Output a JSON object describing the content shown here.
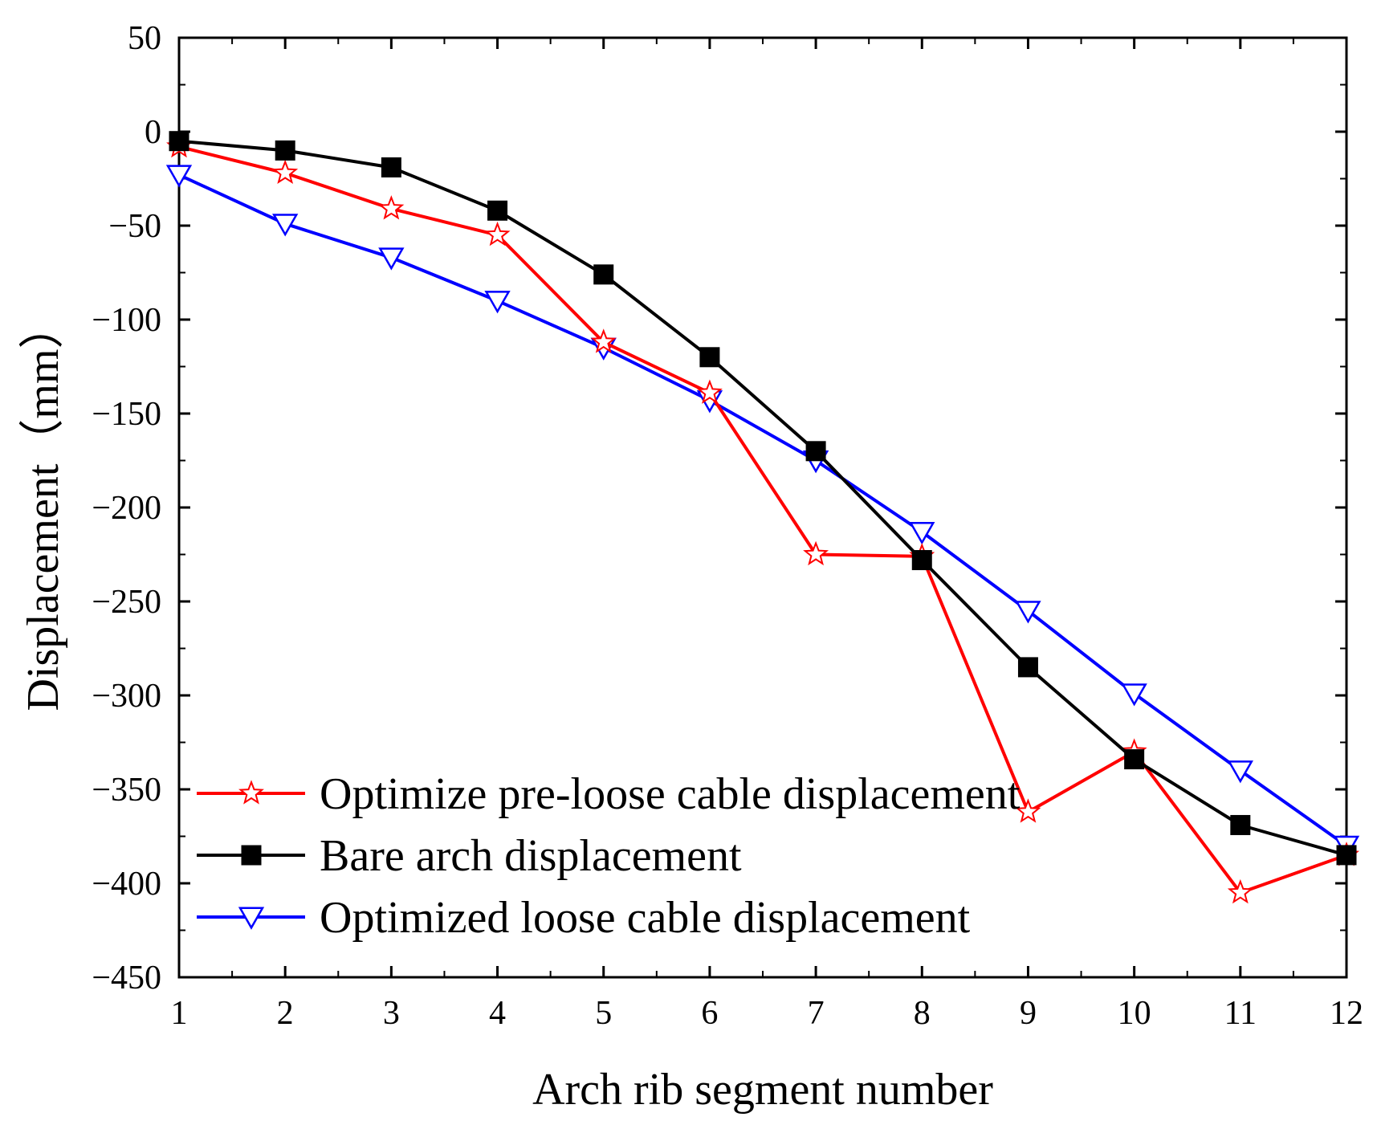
{
  "chart_data": {
    "type": "line",
    "title": "",
    "xlabel": "Arch rib segment number",
    "ylabel": "Displacement（mm）",
    "x": [
      1,
      2,
      3,
      4,
      5,
      6,
      7,
      8,
      9,
      10,
      11,
      12
    ],
    "xlim": [
      1,
      12
    ],
    "ylim": [
      -450,
      50
    ],
    "xticks": [
      "1",
      "2",
      "3",
      "4",
      "5",
      "6",
      "7",
      "8",
      "9",
      "10",
      "11",
      "12"
    ],
    "yticks": [
      50,
      0,
      -50,
      -100,
      -150,
      -200,
      -250,
      -300,
      -350,
      -400,
      -450
    ],
    "ytick_labels": [
      "50",
      "0",
      "−50",
      "−100",
      "−150",
      "−200",
      "−250",
      "−300",
      "−350",
      "−400",
      "−450"
    ],
    "grid": false,
    "legend_position": "bottom-left",
    "series": [
      {
        "name": "Optimize pre-loose cable displacement",
        "color": "#ff0000",
        "marker": "star-open",
        "values": [
          -8,
          -22,
          -41,
          -55,
          -112,
          -139,
          -225,
          -226,
          -362,
          -330,
          -405,
          -385
        ]
      },
      {
        "name": "Bare arch displacement",
        "color": "#000000",
        "marker": "square-filled",
        "values": [
          -5,
          -10,
          -19,
          -42,
          -76,
          -120,
          -170,
          -228,
          -285,
          -334,
          -369,
          -385
        ]
      },
      {
        "name": "Optimized loose cable displacement",
        "color": "#0000ff",
        "marker": "triangle-down-open",
        "values": [
          -23,
          -49,
          -67,
          -90,
          -115,
          -143,
          -175,
          -213,
          -255,
          -299,
          -340,
          -380
        ]
      }
    ]
  }
}
